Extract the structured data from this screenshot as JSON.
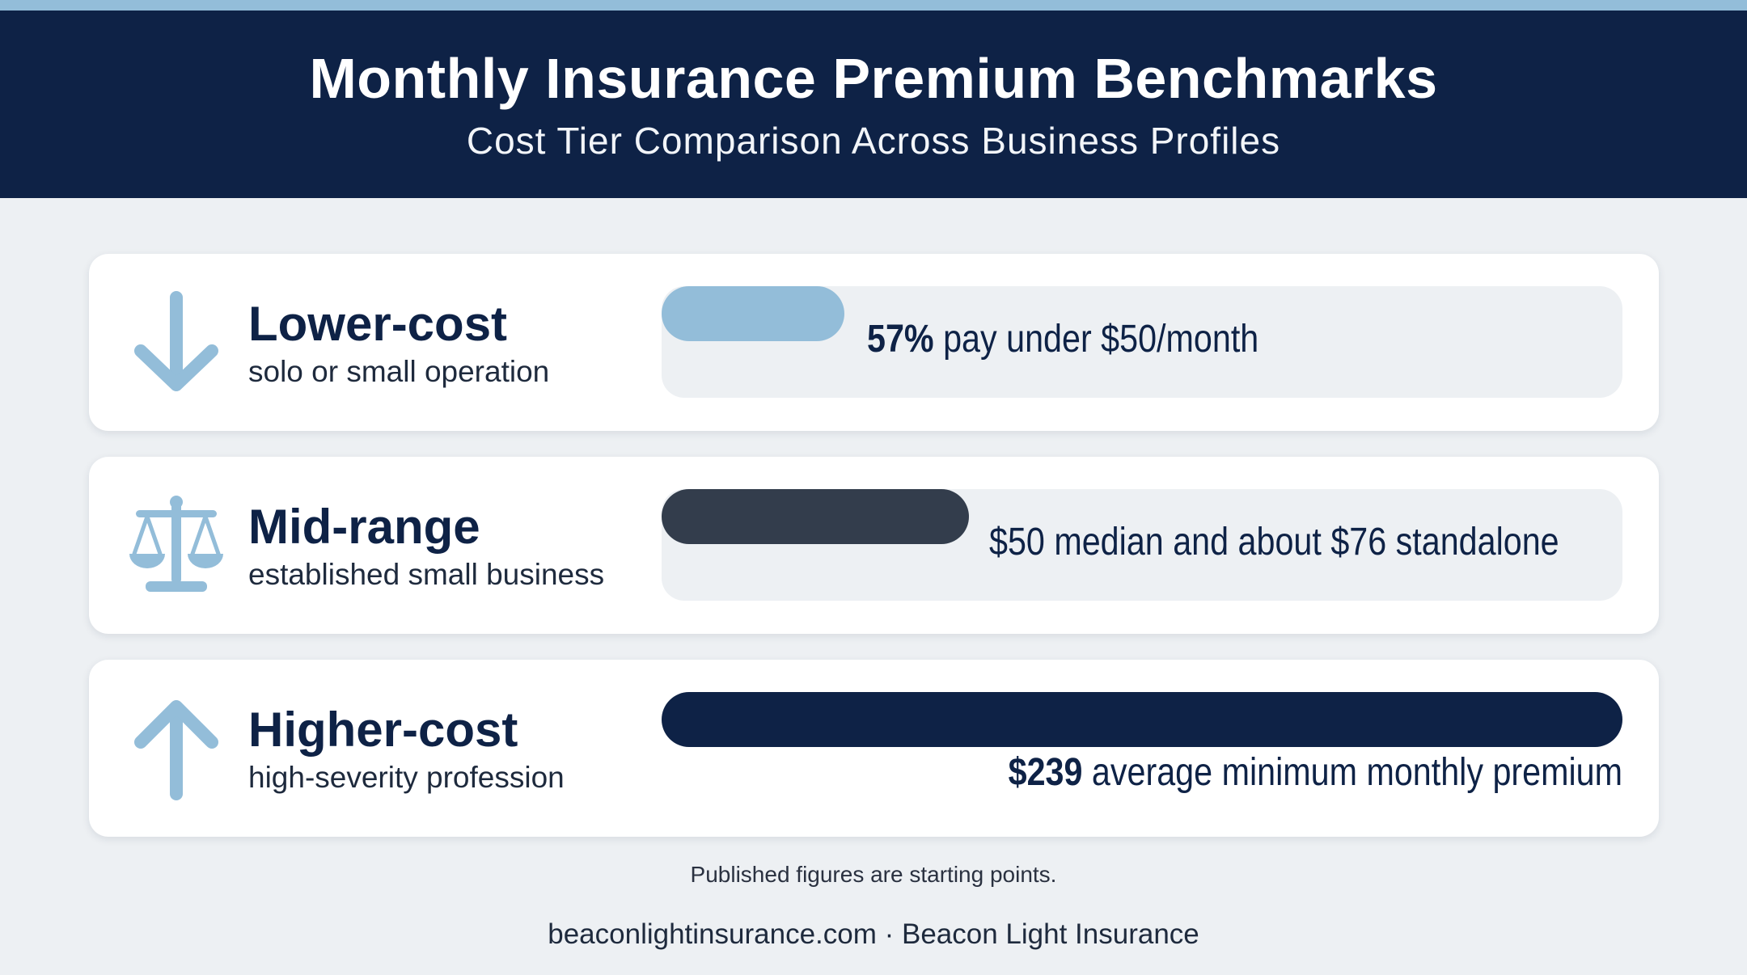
{
  "header": {
    "title": "Monthly Insurance Premium Benchmarks",
    "subtitle": "Cost Tier Comparison Across Business Profiles"
  },
  "tiers": [
    {
      "name": "Lower-cost",
      "description": "solo or small operation",
      "icon": "arrow-down-icon",
      "stat_bold": "57%",
      "stat_text": " pay under $50/month",
      "bar_fraction": 0.19,
      "bar_color": "#93bdd9"
    },
    {
      "name": "Mid-range",
      "description": "established small business",
      "icon": "scales-icon",
      "stat_bold": "",
      "stat_text": "$50 median and about $76 standalone",
      "bar_fraction": 0.32,
      "bar_color": "#333d4c"
    },
    {
      "name": "Higher-cost",
      "description": "high-severity profession",
      "icon": "arrow-up-icon",
      "stat_bold": "$239",
      "stat_text": " average minimum monthly premium",
      "bar_fraction": 1.0,
      "bar_color": "#0e2246"
    }
  ],
  "footnote": "Published figures are starting points.",
  "footer": "beaconlightinsurance.com · Beacon Light Insurance",
  "colors": {
    "header_bg": "#0e2246",
    "accent_light": "#93bdd9",
    "page_bg": "#edf0f3"
  }
}
